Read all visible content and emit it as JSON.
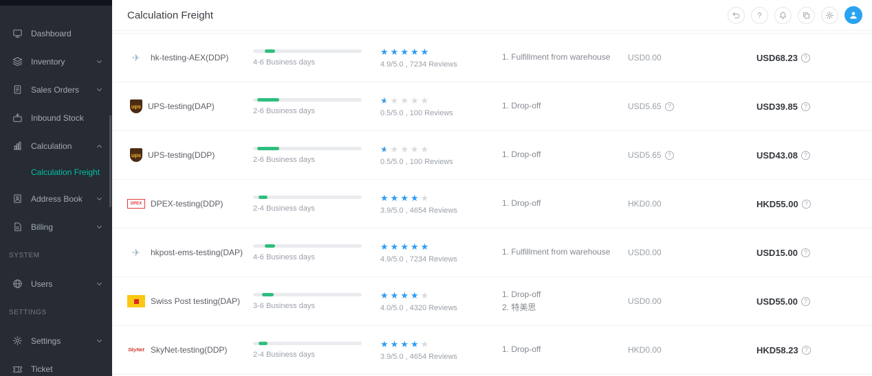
{
  "header": {
    "title": "Calculation Freight",
    "buttons": [
      {
        "icon": "undo",
        "name": "undo-button"
      },
      {
        "icon": "help",
        "name": "help-button"
      },
      {
        "icon": "notification",
        "name": "notification-button"
      },
      {
        "icon": "copy",
        "name": "copy-button"
      },
      {
        "icon": "gear",
        "name": "settings-button"
      }
    ],
    "avatar_color": "#29a3f1"
  },
  "sidebar": {
    "items": [
      {
        "label": "Dashboard",
        "icon": "dashboard"
      },
      {
        "label": "Inventory",
        "icon": "inventory",
        "chevron": true
      },
      {
        "label": "Sales Orders",
        "icon": "sales-orders",
        "chevron": true
      },
      {
        "label": "Inbound Stock",
        "icon": "inbound-stock"
      },
      {
        "label": "Calculation",
        "icon": "calculation",
        "chevron": true,
        "expanded": true,
        "children": [
          {
            "label": "Calculation Freight",
            "active": true
          }
        ]
      },
      {
        "label": "Address Book",
        "icon": "address-book",
        "chevron": true
      },
      {
        "label": "Billing",
        "icon": "billing",
        "chevron": true
      },
      {
        "section": "SYSTEM"
      },
      {
        "label": "Users",
        "icon": "users",
        "chevron": true
      },
      {
        "section": "SETTINGS"
      },
      {
        "label": "Settings",
        "icon": "settings",
        "chevron": true
      },
      {
        "label": "Ticket",
        "icon": "ticket"
      }
    ]
  },
  "colors": {
    "accent_teal": "#00c1a2",
    "star_blue": "#2d9cf4",
    "bar_green": "#2fbe7d",
    "avatar_blue": "#29a3f1",
    "sidebar_bg": "#262b34"
  },
  "rows": [
    {
      "carrier": "hk-testing-AEX(DDP)",
      "logo": "aex",
      "logo_text": "✈",
      "days": "4-6 Business days",
      "bar": {
        "offset": 11,
        "width": 9
      },
      "rating": {
        "value": 4.9,
        "text": "4.9/5.0 , 7234 Reviews"
      },
      "methods": [
        "1. Fulfillment from warehouse"
      ],
      "price": "USD0.00",
      "price_info": false,
      "total": "USD68.23",
      "total_info": true
    },
    {
      "carrier": "UPS-testing(DAP)",
      "logo": "ups",
      "logo_text": "ups",
      "days": "2-6 Business days",
      "bar": {
        "offset": 4,
        "width": 20
      },
      "rating": {
        "value": 0.5,
        "text": "0.5/5.0 , 100 Reviews"
      },
      "methods": [
        "1. Drop-off"
      ],
      "price": "USD5.65",
      "price_info": true,
      "total": "USD39.85",
      "total_info": true
    },
    {
      "carrier": "UPS-testing(DDP)",
      "logo": "ups",
      "logo_text": "ups",
      "days": "2-6 Business days",
      "bar": {
        "offset": 4,
        "width": 20
      },
      "rating": {
        "value": 0.5,
        "text": "0.5/5.0 , 100 Reviews"
      },
      "methods": [
        "1. Drop-off"
      ],
      "price": "USD5.65",
      "price_info": true,
      "total": "USD43.08",
      "total_info": true
    },
    {
      "carrier": "DPEX-testing(DDP)",
      "logo": "dpex",
      "logo_text": "DPEX",
      "days": "2-4 Business days",
      "bar": {
        "offset": 5,
        "width": 8
      },
      "rating": {
        "value": 3.9,
        "text": "3.9/5.0 , 4654 Reviews"
      },
      "methods": [
        "1. Drop-off"
      ],
      "price": "HKD0.00",
      "price_info": false,
      "total": "HKD55.00",
      "total_info": true
    },
    {
      "carrier": "hkpost-ems-testing(DAP)",
      "logo": "hkpost",
      "logo_text": "✈",
      "days": "4-6 Business days",
      "bar": {
        "offset": 11,
        "width": 9
      },
      "rating": {
        "value": 4.9,
        "text": "4.9/5.0 , 7234 Reviews"
      },
      "methods": [
        "1. Fulfillment from warehouse"
      ],
      "price": "USD0.00",
      "price_info": false,
      "total": "USD15.00",
      "total_info": true
    },
    {
      "carrier": "Swiss Post testing(DAP)",
      "logo": "swisspost",
      "logo_text": "",
      "days": "3-6 Business days",
      "bar": {
        "offset": 8,
        "width": 11
      },
      "rating": {
        "value": 4.0,
        "text": "4.0/5.0 , 4320 Reviews"
      },
      "methods": [
        "1. Drop-off",
        "2. 特美思"
      ],
      "price": "USD0.00",
      "price_info": false,
      "total": "USD55.00",
      "total_info": true
    },
    {
      "carrier": "SkyNet-testing(DDP)",
      "logo": "skynet",
      "logo_text": "SkyNet",
      "days": "2-4 Business days",
      "bar": {
        "offset": 5,
        "width": 8
      },
      "rating": {
        "value": 3.9,
        "text": "3.9/5.0 , 4654 Reviews"
      },
      "methods": [
        "1. Drop-off"
      ],
      "price": "HKD0.00",
      "price_info": false,
      "total": "HKD58.23",
      "total_info": true
    }
  ]
}
